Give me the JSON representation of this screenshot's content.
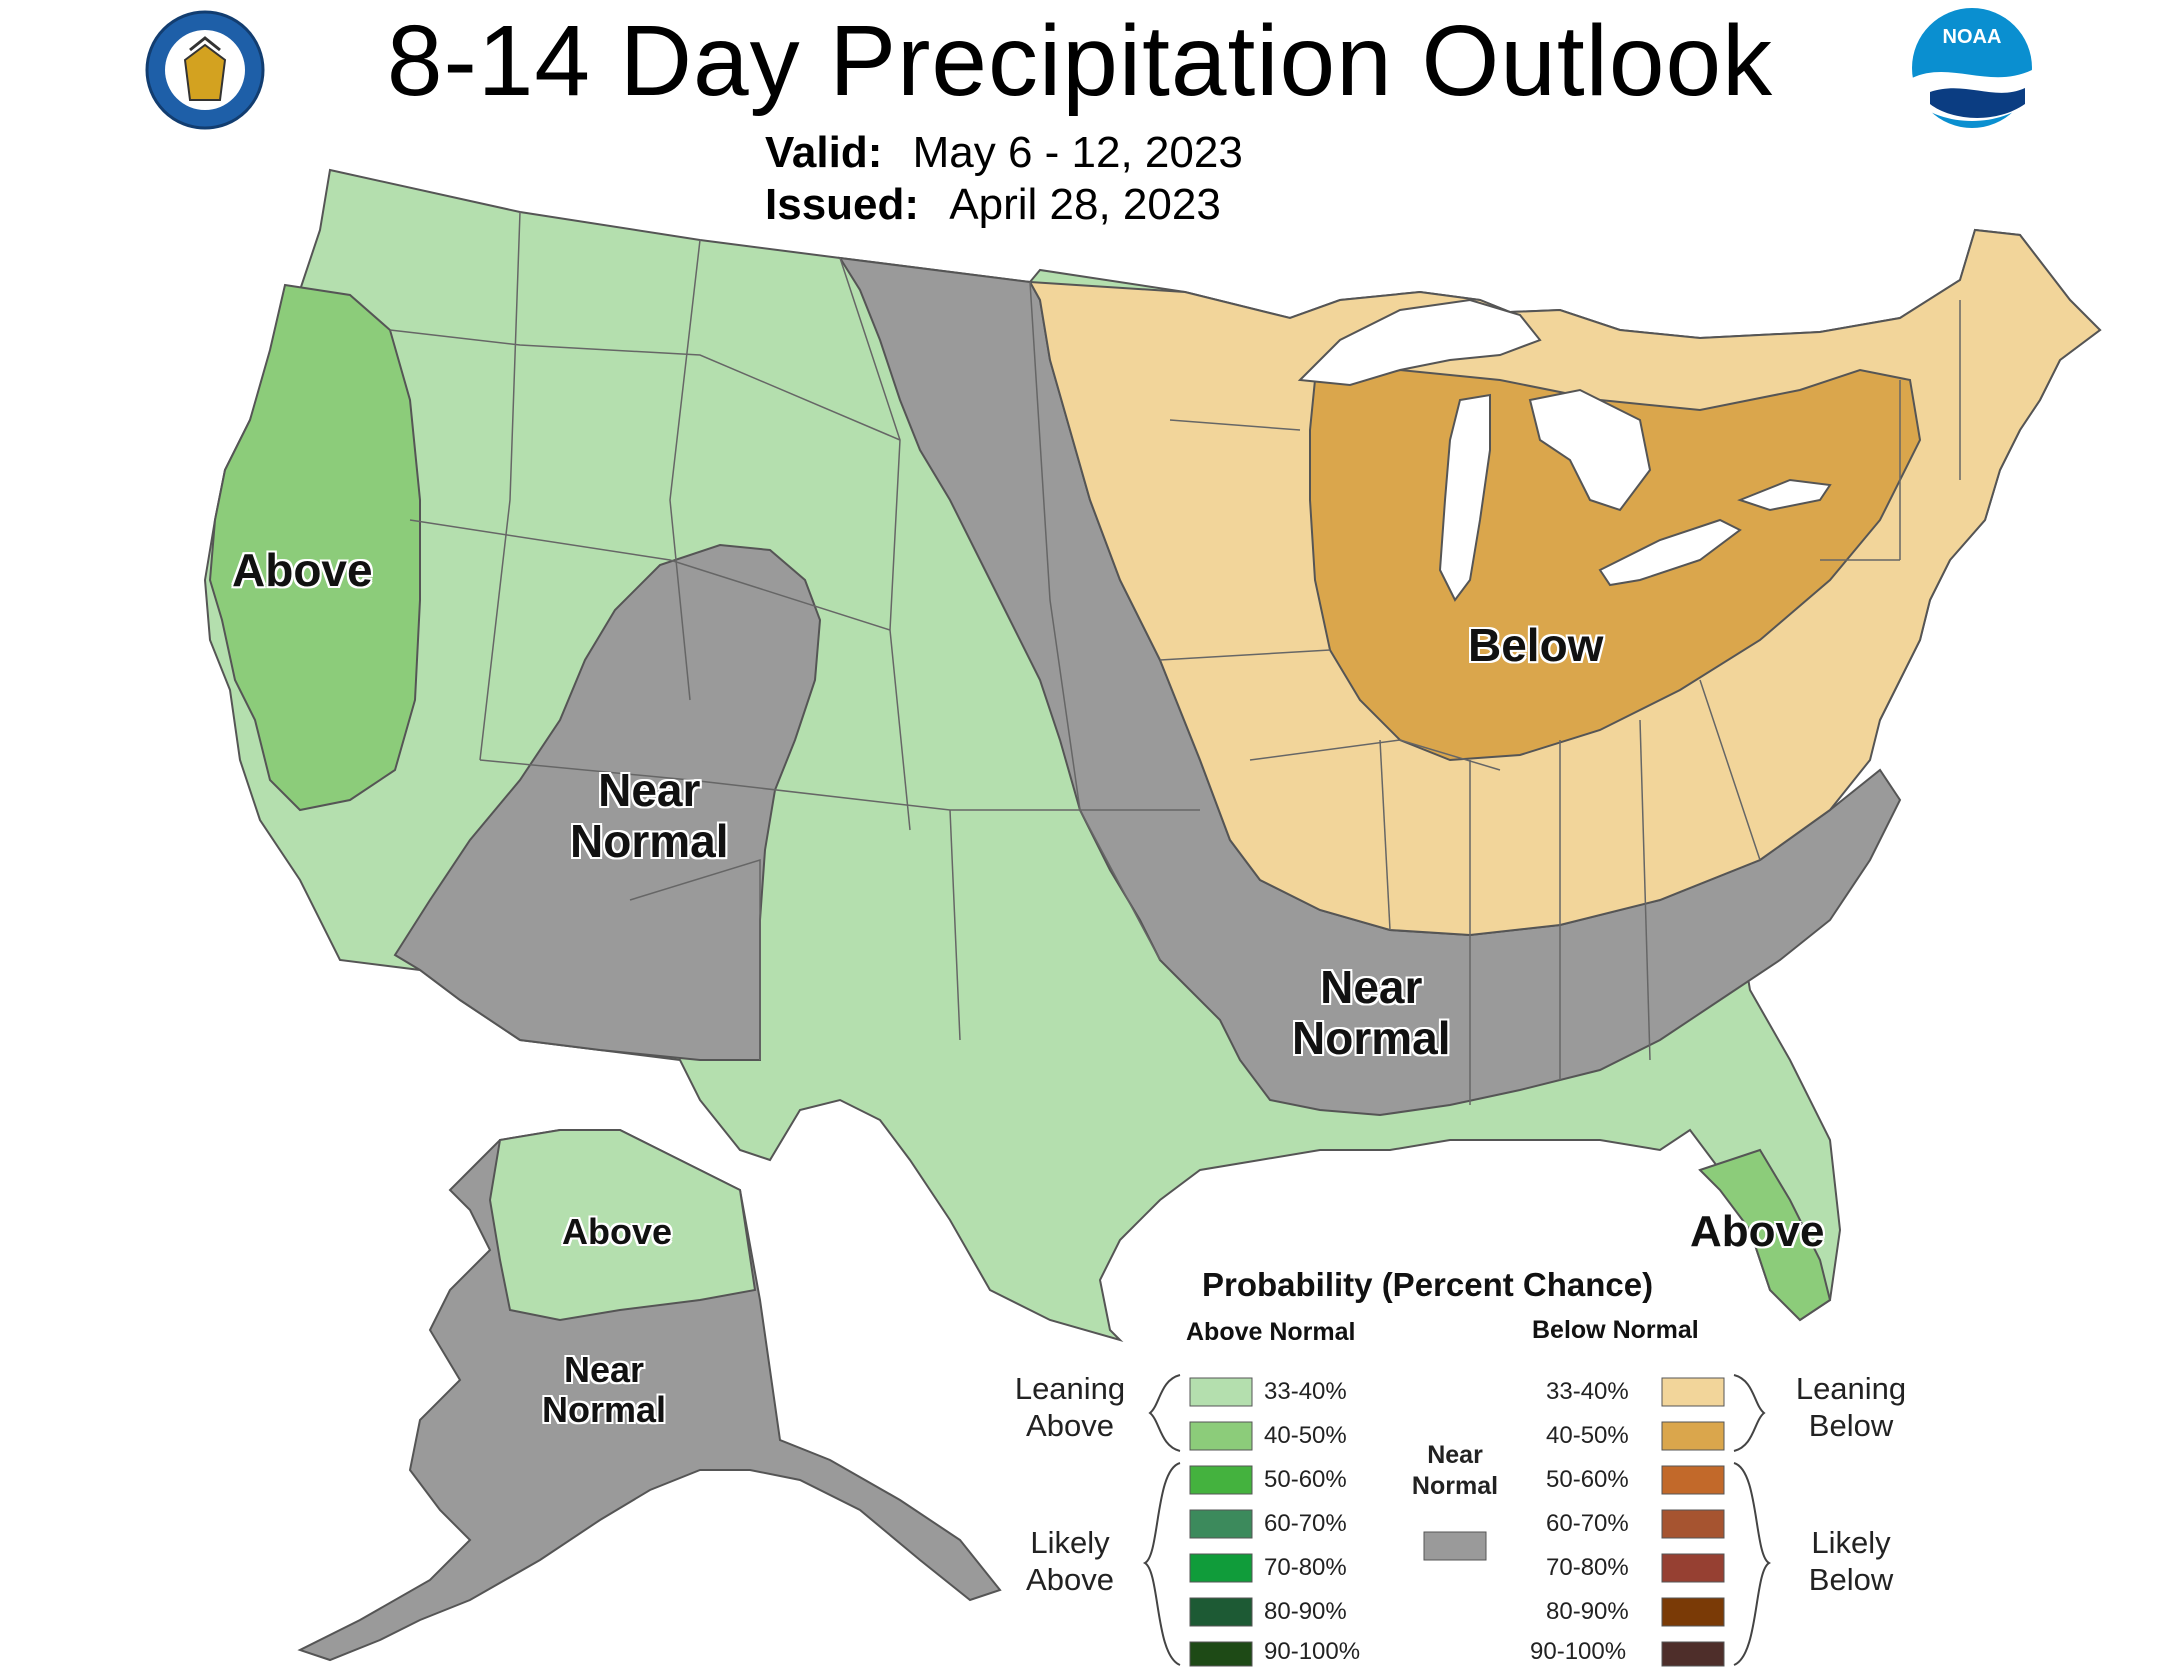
{
  "header": {
    "title": "8-14 Day Precipitation Outlook",
    "valid_label": "Valid:",
    "valid_value": "May 6 - 12, 2023",
    "issued_label": "Issued:",
    "issued_value": "April 28, 2023"
  },
  "logos": {
    "doc_seal_icon": "department-of-commerce-seal",
    "noaa_icon": "noaa-logo",
    "noaa_text": "NOAA"
  },
  "map_labels": {
    "west_coast": "Above",
    "southwest_l1": "Near",
    "southwest_l2": "Normal",
    "great_lakes": "Below",
    "southeast_l1": "Near",
    "southeast_l2": "Normal",
    "florida": "Above",
    "alaska_north": "Above",
    "alaska_south_l1": "Near",
    "alaska_south_l2": "Normal"
  },
  "colors": {
    "above_33_40": "#b4dfae",
    "above_40_50": "#8ccc7a",
    "above_50_60": "#44b23e",
    "above_60_70": "#3c8a5c",
    "above_70_80": "#109c3a",
    "above_80_90": "#1d5a34",
    "above_90_100": "#1e4a16",
    "below_33_40": "#f2d59a",
    "below_40_50": "#daa64c",
    "below_50_60": "#c2692a",
    "below_60_70": "#a65430",
    "below_70_80": "#964032",
    "below_80_90": "#7a3a06",
    "below_90_100": "#4e2e2a",
    "near_normal": "#9a9a9a",
    "boundary": "#555555"
  },
  "legend": {
    "title": "Probability (Percent Chance)",
    "above_head": "Above Normal",
    "below_head": "Below Normal",
    "near_l1": "Near",
    "near_l2": "Normal",
    "leaning_above_l1": "Leaning",
    "leaning_above_l2": "Above",
    "likely_above_l1": "Likely",
    "likely_above_l2": "Above",
    "leaning_below_l1": "Leaning",
    "leaning_below_l2": "Below",
    "likely_below_l1": "Likely",
    "likely_below_l2": "Below",
    "bins": [
      "33-40%",
      "40-50%",
      "50-60%",
      "60-70%",
      "70-80%",
      "80-90%",
      "90-100%"
    ]
  }
}
